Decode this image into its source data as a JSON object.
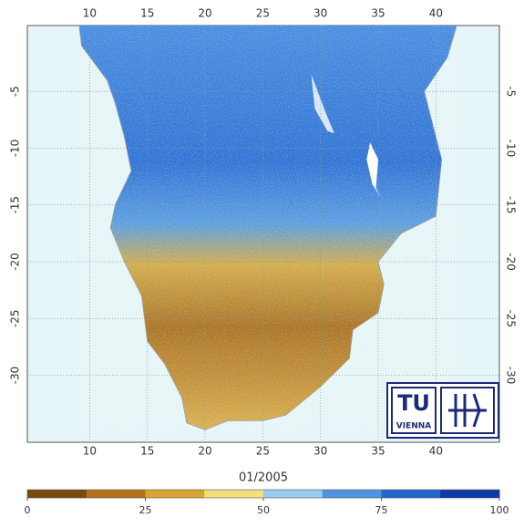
{
  "map": {
    "xlim": [
      4.6,
      45.5
    ],
    "ylim": [
      0.8,
      -35.9
    ],
    "xticks": [
      10,
      15,
      20,
      25,
      30,
      35,
      40
    ],
    "yticks": [
      -5,
      -10,
      -15,
      -20,
      -25,
      -30
    ],
    "grid": true
  },
  "colorbar": {
    "title": "01/2005",
    "lim": [
      0,
      100
    ],
    "ticks": [
      0,
      25,
      50,
      75,
      100
    ],
    "colors": [
      "#7a4a0e",
      "#b27318",
      "#d9a532",
      "#f2e07a",
      "#9ccbf0",
      "#4f94e2",
      "#2466cc",
      "#0b3aa6"
    ]
  },
  "logo": {
    "left": "TU",
    "bottom": "VIENNA"
  }
}
